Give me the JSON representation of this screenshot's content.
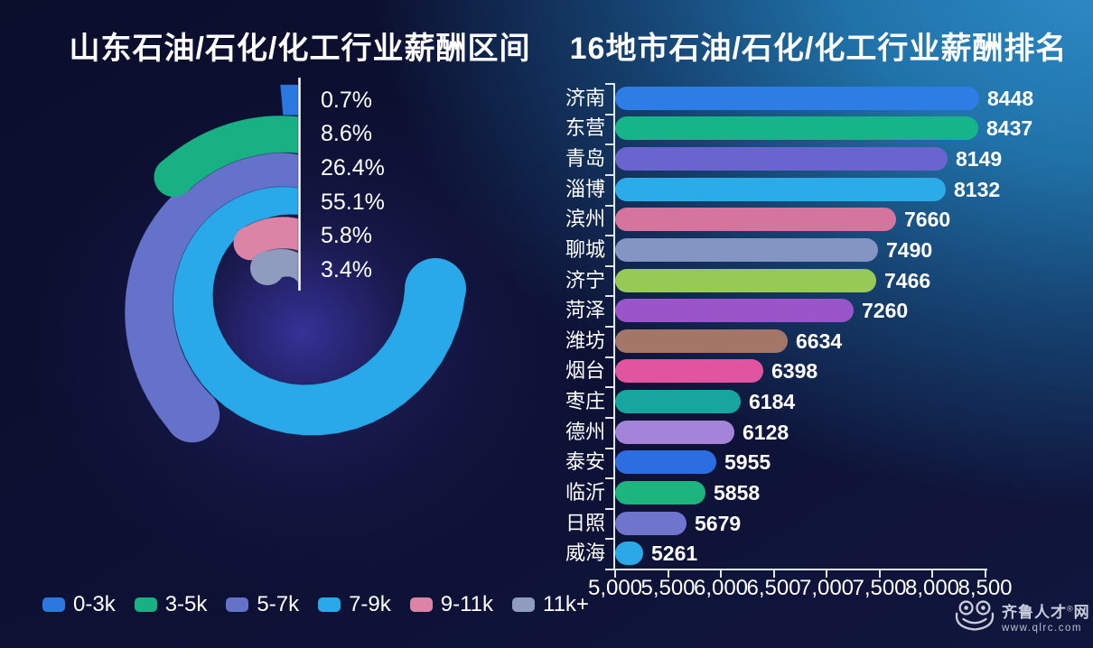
{
  "logo": {
    "brand": "齐鲁人才",
    "reg_mark": "®",
    "brand_suffix": "网",
    "url": "www.qlrc.com"
  },
  "chart_data": [
    {
      "type": "pie",
      "title": "山东石油/石化/化工行业薪酬区间",
      "style": "radial-spiral-donut",
      "start_angle": "12-o-clock",
      "direction": "counterclockwise",
      "legend_position": "bottom-left",
      "segments": [
        {
          "label": "0-3k",
          "value": 0.7,
          "display": "0.7%",
          "color": "#2b79e0"
        },
        {
          "label": "3-5k",
          "value": 8.6,
          "display": "8.6%",
          "color": "#19b184"
        },
        {
          "label": "5-7k",
          "value": 26.4,
          "display": "26.4%",
          "color": "#6472c9"
        },
        {
          "label": "7-9k",
          "value": 55.1,
          "display": "55.1%",
          "color": "#29a9e9"
        },
        {
          "label": "9-11k",
          "value": 5.8,
          "display": "5.8%",
          "color": "#db84a5"
        },
        {
          "label": "11k+",
          "value": 3.4,
          "display": "3.4%",
          "color": "#8f9cbd"
        }
      ]
    },
    {
      "type": "bar",
      "title": "16地市石油/石化/化工行业薪酬排名",
      "orientation": "horizontal",
      "xlim": [
        5000,
        8500
      ],
      "grid": false,
      "x_ticks": [
        "5,000",
        "5,500",
        "6,000",
        "6,500",
        "7,000",
        "7,500",
        "8,000",
        "8,500"
      ],
      "categories": [
        "济南",
        "东营",
        "青岛",
        "淄博",
        "滨州",
        "聊城",
        "济宁",
        "菏泽",
        "潍坊",
        "烟台",
        "枣庄",
        "德州",
        "泰安",
        "临沂",
        "日照",
        "威海"
      ],
      "values": [
        8448,
        8437,
        8149,
        8132,
        7660,
        7490,
        7466,
        7260,
        6634,
        6398,
        6184,
        6128,
        5955,
        5858,
        5679,
        5261
      ],
      "colors": [
        "#2e7de4",
        "#16b589",
        "#6a64cf",
        "#2cabe9",
        "#d5749c",
        "#8495c4",
        "#97c956",
        "#9a55c9",
        "#a37668",
        "#e155a0",
        "#17a5a0",
        "#a484d8",
        "#2c6de2",
        "#1cb57e",
        "#6f74cd",
        "#2ba9e6"
      ]
    }
  ]
}
